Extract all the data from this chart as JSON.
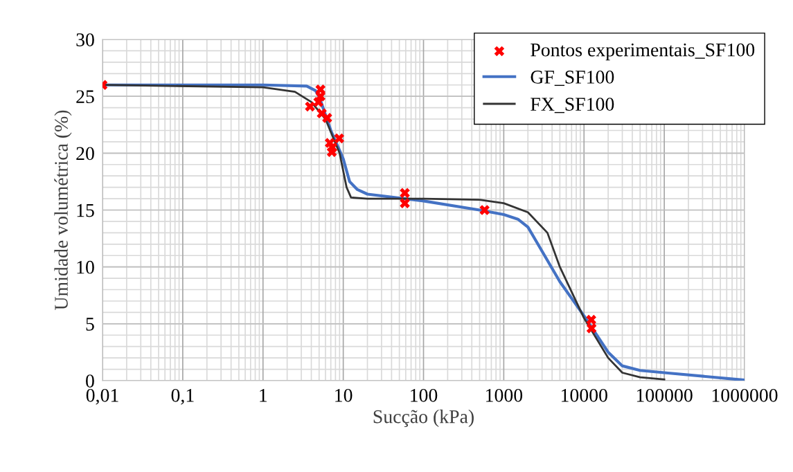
{
  "chart_data": {
    "type": "line",
    "xlabel": "Sucção (kPa)",
    "ylabel": "Umidade volumétrica (%)",
    "log": "x",
    "xlim": [
      0.01,
      1000000
    ],
    "xticks": [
      {
        "value": 0.01,
        "label": "0,01"
      },
      {
        "value": 0.1,
        "label": "0,1"
      },
      1,
      10,
      100,
      1000,
      10000,
      100000,
      1000000
    ],
    "ylim": [
      0,
      30
    ],
    "yticks": [
      0,
      5,
      10,
      15,
      20,
      25,
      30
    ],
    "grid": true,
    "legend": "top right",
    "series": [
      {
        "name": "Pontos experimentais_SF100",
        "type": "scatter",
        "marker": "cross",
        "color": "#ff0000",
        "x": [
          0.01,
          3.85,
          5.2,
          5.2,
          4.9,
          5.4,
          6.3,
          6.8,
          7.2,
          8.9,
          7.3,
          58.5,
          58.5,
          577,
          12300,
          12400
        ],
        "values": [
          26.0,
          24.1,
          25.6,
          25.0,
          24.5,
          23.5,
          23.1,
          20.9,
          20.1,
          21.3,
          20.5,
          16.5,
          15.6,
          15.0,
          5.35,
          4.6
        ]
      },
      {
        "name": "GF_SF100",
        "color": "#4472c4",
        "x": [
          0.01,
          1,
          3.5,
          4.5,
          5,
          7,
          10,
          12,
          15,
          20,
          100,
          500,
          1000,
          1500,
          2000,
          5000,
          10000,
          20000,
          30000,
          50000,
          100000,
          1000000
        ],
        "values": [
          26,
          26,
          25.9,
          25.5,
          25,
          22,
          19.5,
          17.5,
          16.8,
          16.4,
          15.8,
          15.0,
          14.6,
          14.2,
          13.5,
          8.7,
          5.7,
          2.5,
          1.3,
          0.9,
          0.7,
          0.05
        ]
      },
      {
        "name": "FX_SF100",
        "color": "#333333",
        "x": [
          0.01,
          1,
          2.5,
          4,
          6,
          9,
          11,
          12.5,
          20,
          100,
          500,
          1000,
          2000,
          3500,
          5000,
          10000,
          20000,
          30000,
          50000,
          100000
        ],
        "values": [
          26,
          25.8,
          25.4,
          24.5,
          23,
          20,
          17,
          16.1,
          16,
          16,
          15.9,
          15.6,
          14.8,
          13,
          10,
          5.5,
          2,
          0.7,
          0.3,
          0.1
        ]
      }
    ]
  }
}
